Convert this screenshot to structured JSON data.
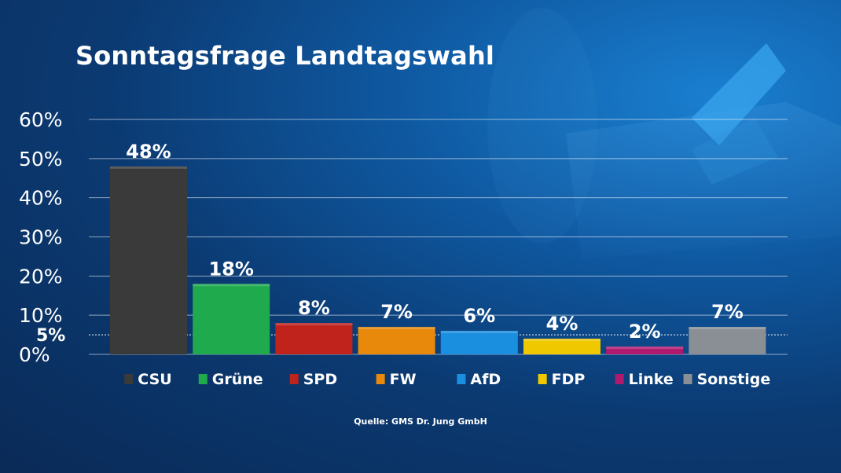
{
  "chart_data": {
    "type": "bar",
    "title": "Sonntagsfrage Landtagswahl",
    "categories": [
      "CSU",
      "Grüne",
      "SPD",
      "FW",
      "AfD",
      "FDP",
      "Linke",
      "Sonstige"
    ],
    "values": [
      48,
      18,
      8,
      7,
      6,
      4,
      2,
      7
    ],
    "value_labels": [
      "48%",
      "18%",
      "8%",
      "7%",
      "6%",
      "4%",
      "2%",
      "7%"
    ],
    "colors": [
      "#3a3a3a",
      "#1faa4e",
      "#c0221c",
      "#e8890c",
      "#1a8fe0",
      "#f0c800",
      "#b01a6e",
      "#8a8f96"
    ],
    "ylim": [
      0,
      60
    ],
    "yticks": [
      0,
      10,
      20,
      30,
      40,
      50,
      60
    ],
    "ytick_labels": [
      "0%",
      "10%",
      "20%",
      "30%",
      "40%",
      "50%",
      "60%"
    ],
    "threshold": {
      "value": 5,
      "label": "5%"
    },
    "grid": true,
    "legend": "bottom",
    "source": "Quelle: GMS Dr. Jung GmbH"
  }
}
